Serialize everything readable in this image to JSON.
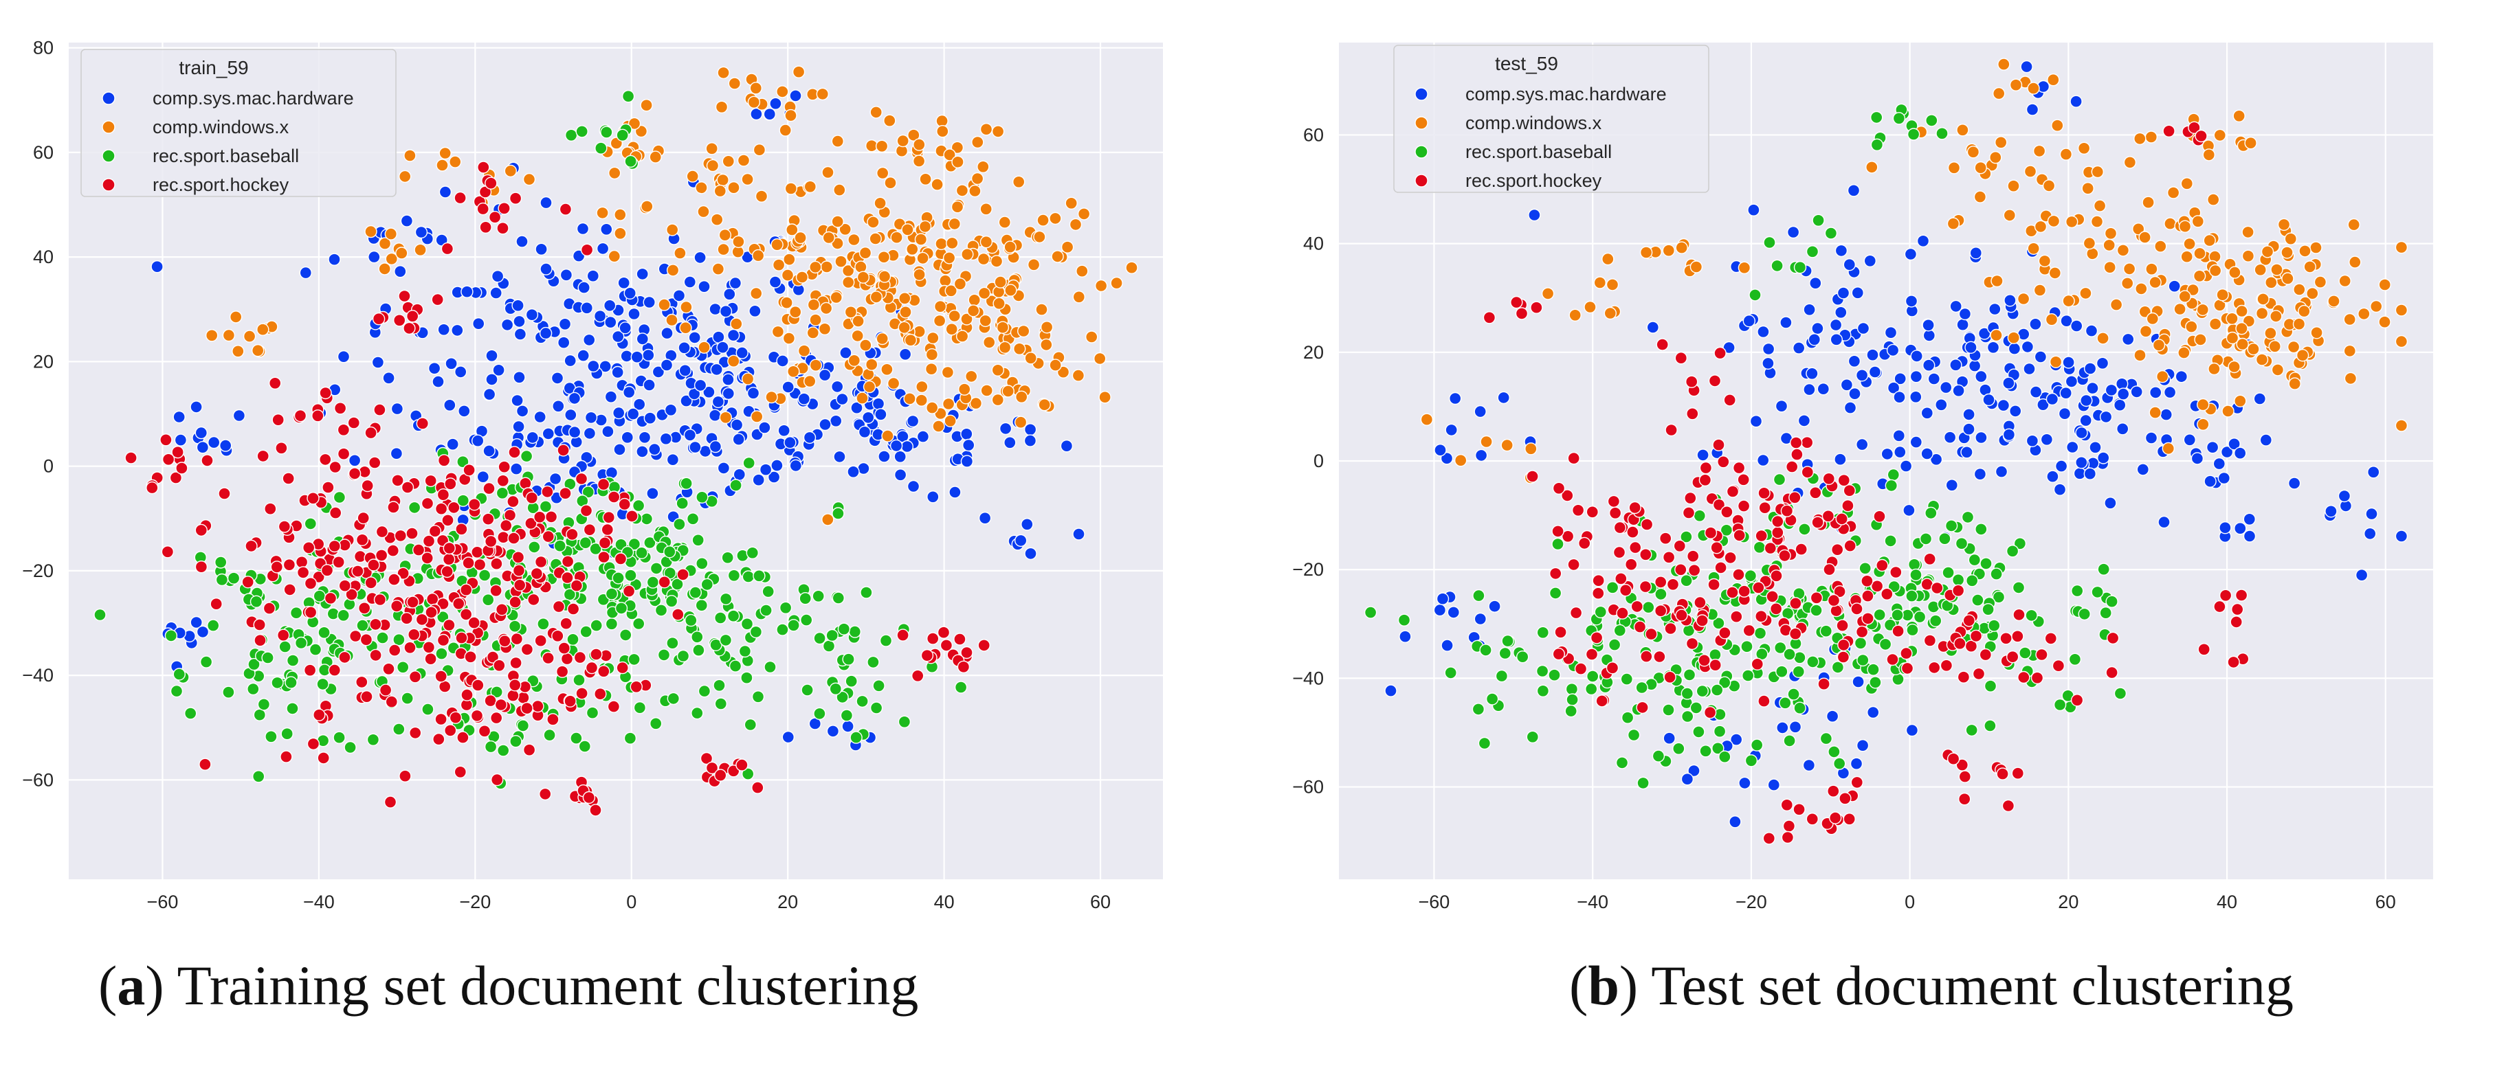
{
  "chart_data": [
    {
      "type": "scatter",
      "title": "",
      "xlabel": "",
      "ylabel": "",
      "xlim": [
        -72,
        68
      ],
      "ylim": [
        -79,
        81
      ],
      "xticks": [
        -60,
        -40,
        -20,
        0,
        20,
        40,
        60
      ],
      "yticks": [
        -60,
        -40,
        -20,
        0,
        20,
        40,
        60,
        80
      ],
      "grid": true,
      "legend_title": "train_59",
      "legend_position": "upper-left",
      "caption_letter": "a",
      "caption_text": "Training set document clustering",
      "series": [
        {
          "name": "comp.sys.mac.hardware",
          "color": "#0a3cf0",
          "clusters": [
            [
              -5,
              22,
              16,
              14,
              200
            ],
            [
              10,
              14,
              12,
              9,
              110
            ],
            [
              25,
              8,
              9,
              7,
              40
            ],
            [
              35,
              5,
              7,
              6,
              30
            ],
            [
              -55,
              5,
              3,
              3,
              10
            ],
            [
              -58,
              -35,
              2,
              4,
              8
            ],
            [
              -10,
              -3,
              6,
              4,
              20
            ],
            [
              28,
              -50,
              3,
              2,
              6
            ],
            [
              18,
              68,
              2,
              2,
              6
            ],
            [
              -30,
              42,
              4,
              2,
              8
            ],
            [
              52,
              6,
              4,
              2,
              8
            ],
            [
              50,
              -15,
              3,
              3,
              6
            ]
          ]
        },
        {
          "name": "comp.windows.x",
          "color": "#f07f0a",
          "clusters": [
            [
              32,
              30,
              12,
              10,
              180
            ],
            [
              45,
              40,
              8,
              8,
              70
            ],
            [
              48,
              20,
              5,
              6,
              40
            ],
            [
              0,
              62,
              3,
              3,
              15
            ],
            [
              15,
              70,
              4,
              3,
              15
            ],
            [
              38,
              60,
              4,
              4,
              25
            ],
            [
              -50,
              25,
              3,
              2,
              10
            ],
            [
              18,
              45,
              10,
              8,
              50
            ],
            [
              -30,
              42,
              3,
              3,
              8
            ],
            [
              -20,
              55,
              4,
              3,
              10
            ],
            [
              13,
              55,
              4,
              3,
              12
            ]
          ]
        },
        {
          "name": "rec.sport.baseball",
          "color": "#1cba1c",
          "clusters": [
            [
              -5,
              -20,
              12,
              10,
              190
            ],
            [
              -35,
              -30,
              10,
              10,
              100
            ],
            [
              15,
              -35,
              10,
              10,
              70
            ],
            [
              28,
              -42,
              2,
              4,
              15
            ],
            [
              -45,
              -40,
              5,
              5,
              25
            ],
            [
              -3,
              62,
              3,
              3,
              10
            ],
            [
              -50,
              -25,
              3,
              4,
              10
            ],
            [
              -15,
              -50,
              5,
              5,
              20
            ],
            [
              5,
              -20,
              5,
              5,
              30
            ]
          ]
        },
        {
          "name": "rec.sport.hockey",
          "color": "#e0061a",
          "clusters": [
            [
              -22,
              -18,
              10,
              10,
              200
            ],
            [
              -40,
              -15,
              8,
              8,
              60
            ],
            [
              -28,
              -45,
              8,
              8,
              50
            ],
            [
              -10,
              -40,
              6,
              6,
              40
            ],
            [
              -8,
              -62,
              3,
              2,
              10
            ],
            [
              12,
              -58,
              3,
              2,
              10
            ],
            [
              40,
              -35,
              3,
              3,
              15
            ],
            [
              -58,
              0,
              3,
              3,
              10
            ],
            [
              -38,
              10,
              4,
              3,
              15
            ],
            [
              -28,
              28,
              3,
              3,
              10
            ],
            [
              -17,
              50,
              4,
              4,
              15
            ]
          ]
        }
      ]
    },
    {
      "type": "scatter",
      "title": "",
      "xlabel": "",
      "ylabel": "",
      "xlim": [
        -72,
        66
      ],
      "ylim": [
        -77,
        77
      ],
      "xticks": [
        -60,
        -40,
        -20,
        0,
        20,
        40,
        60
      ],
      "yticks": [
        -60,
        -40,
        -20,
        0,
        20,
        40,
        60
      ],
      "grid": true,
      "legend_title": "test_59",
      "legend_position": "upper-left",
      "caption_letter": "b",
      "caption_text": "Test set document clustering",
      "series": [
        {
          "name": "comp.sys.mac.hardware",
          "color": "#0a3cf0",
          "clusters": [
            [
              0,
              20,
              14,
              12,
              140
            ],
            [
              15,
              10,
              10,
              8,
              60
            ],
            [
              30,
              5,
              8,
              6,
              30
            ],
            [
              -58,
              -28,
              3,
              4,
              10
            ],
            [
              -10,
              -50,
              6,
              10,
              20
            ],
            [
              40,
              -5,
              8,
              8,
              15
            ],
            [
              55,
              -10,
              4,
              6,
              8
            ],
            [
              16,
              68,
              2,
              3,
              5
            ],
            [
              -25,
              -55,
              3,
              3,
              6
            ],
            [
              -65,
              -44,
              1,
              1,
              1
            ],
            [
              -55,
              5,
              4,
              4,
              8
            ]
          ]
        },
        {
          "name": "comp.windows.x",
          "color": "#f07f0a",
          "clusters": [
            [
              35,
              32,
              12,
              10,
              150
            ],
            [
              45,
              22,
              6,
              6,
              40
            ],
            [
              10,
              50,
              8,
              6,
              30
            ],
            [
              -28,
              38,
              3,
              3,
              10
            ],
            [
              -40,
              30,
              3,
              3,
              8
            ],
            [
              16,
              70,
              2,
              2,
              5
            ],
            [
              37,
              60,
              4,
              4,
              12
            ],
            [
              -55,
              2,
              3,
              3,
              6
            ]
          ]
        },
        {
          "name": "rec.sport.baseball",
          "color": "#1cba1c",
          "clusters": [
            [
              -10,
              -25,
              12,
              10,
              150
            ],
            [
              -40,
              -35,
              10,
              8,
              80
            ],
            [
              10,
              -30,
              10,
              10,
              50
            ],
            [
              -25,
              -50,
              6,
              6,
              25
            ],
            [
              0,
              62,
              3,
              3,
              10
            ],
            [
              -15,
              40,
              4,
              4,
              8
            ],
            [
              5,
              -15,
              5,
              5,
              20
            ]
          ]
        },
        {
          "name": "rec.sport.hockey",
          "color": "#e0061a",
          "clusters": [
            [
              -18,
              -12,
              6,
              8,
              70
            ],
            [
              -28,
              -30,
              8,
              6,
              60
            ],
            [
              -5,
              -30,
              8,
              8,
              50
            ],
            [
              -40,
              -15,
              6,
              6,
              30
            ],
            [
              12,
              -35,
              6,
              6,
              25
            ],
            [
              10,
              -58,
              3,
              3,
              10
            ],
            [
              -12,
              -65,
              4,
              3,
              15
            ],
            [
              40,
              -30,
              3,
              4,
              8
            ],
            [
              -28,
              15,
              3,
              3,
              8
            ],
            [
              -48,
              27,
              2,
              2,
              5
            ],
            [
              35,
              62,
              2,
              2,
              5
            ]
          ]
        }
      ]
    }
  ]
}
